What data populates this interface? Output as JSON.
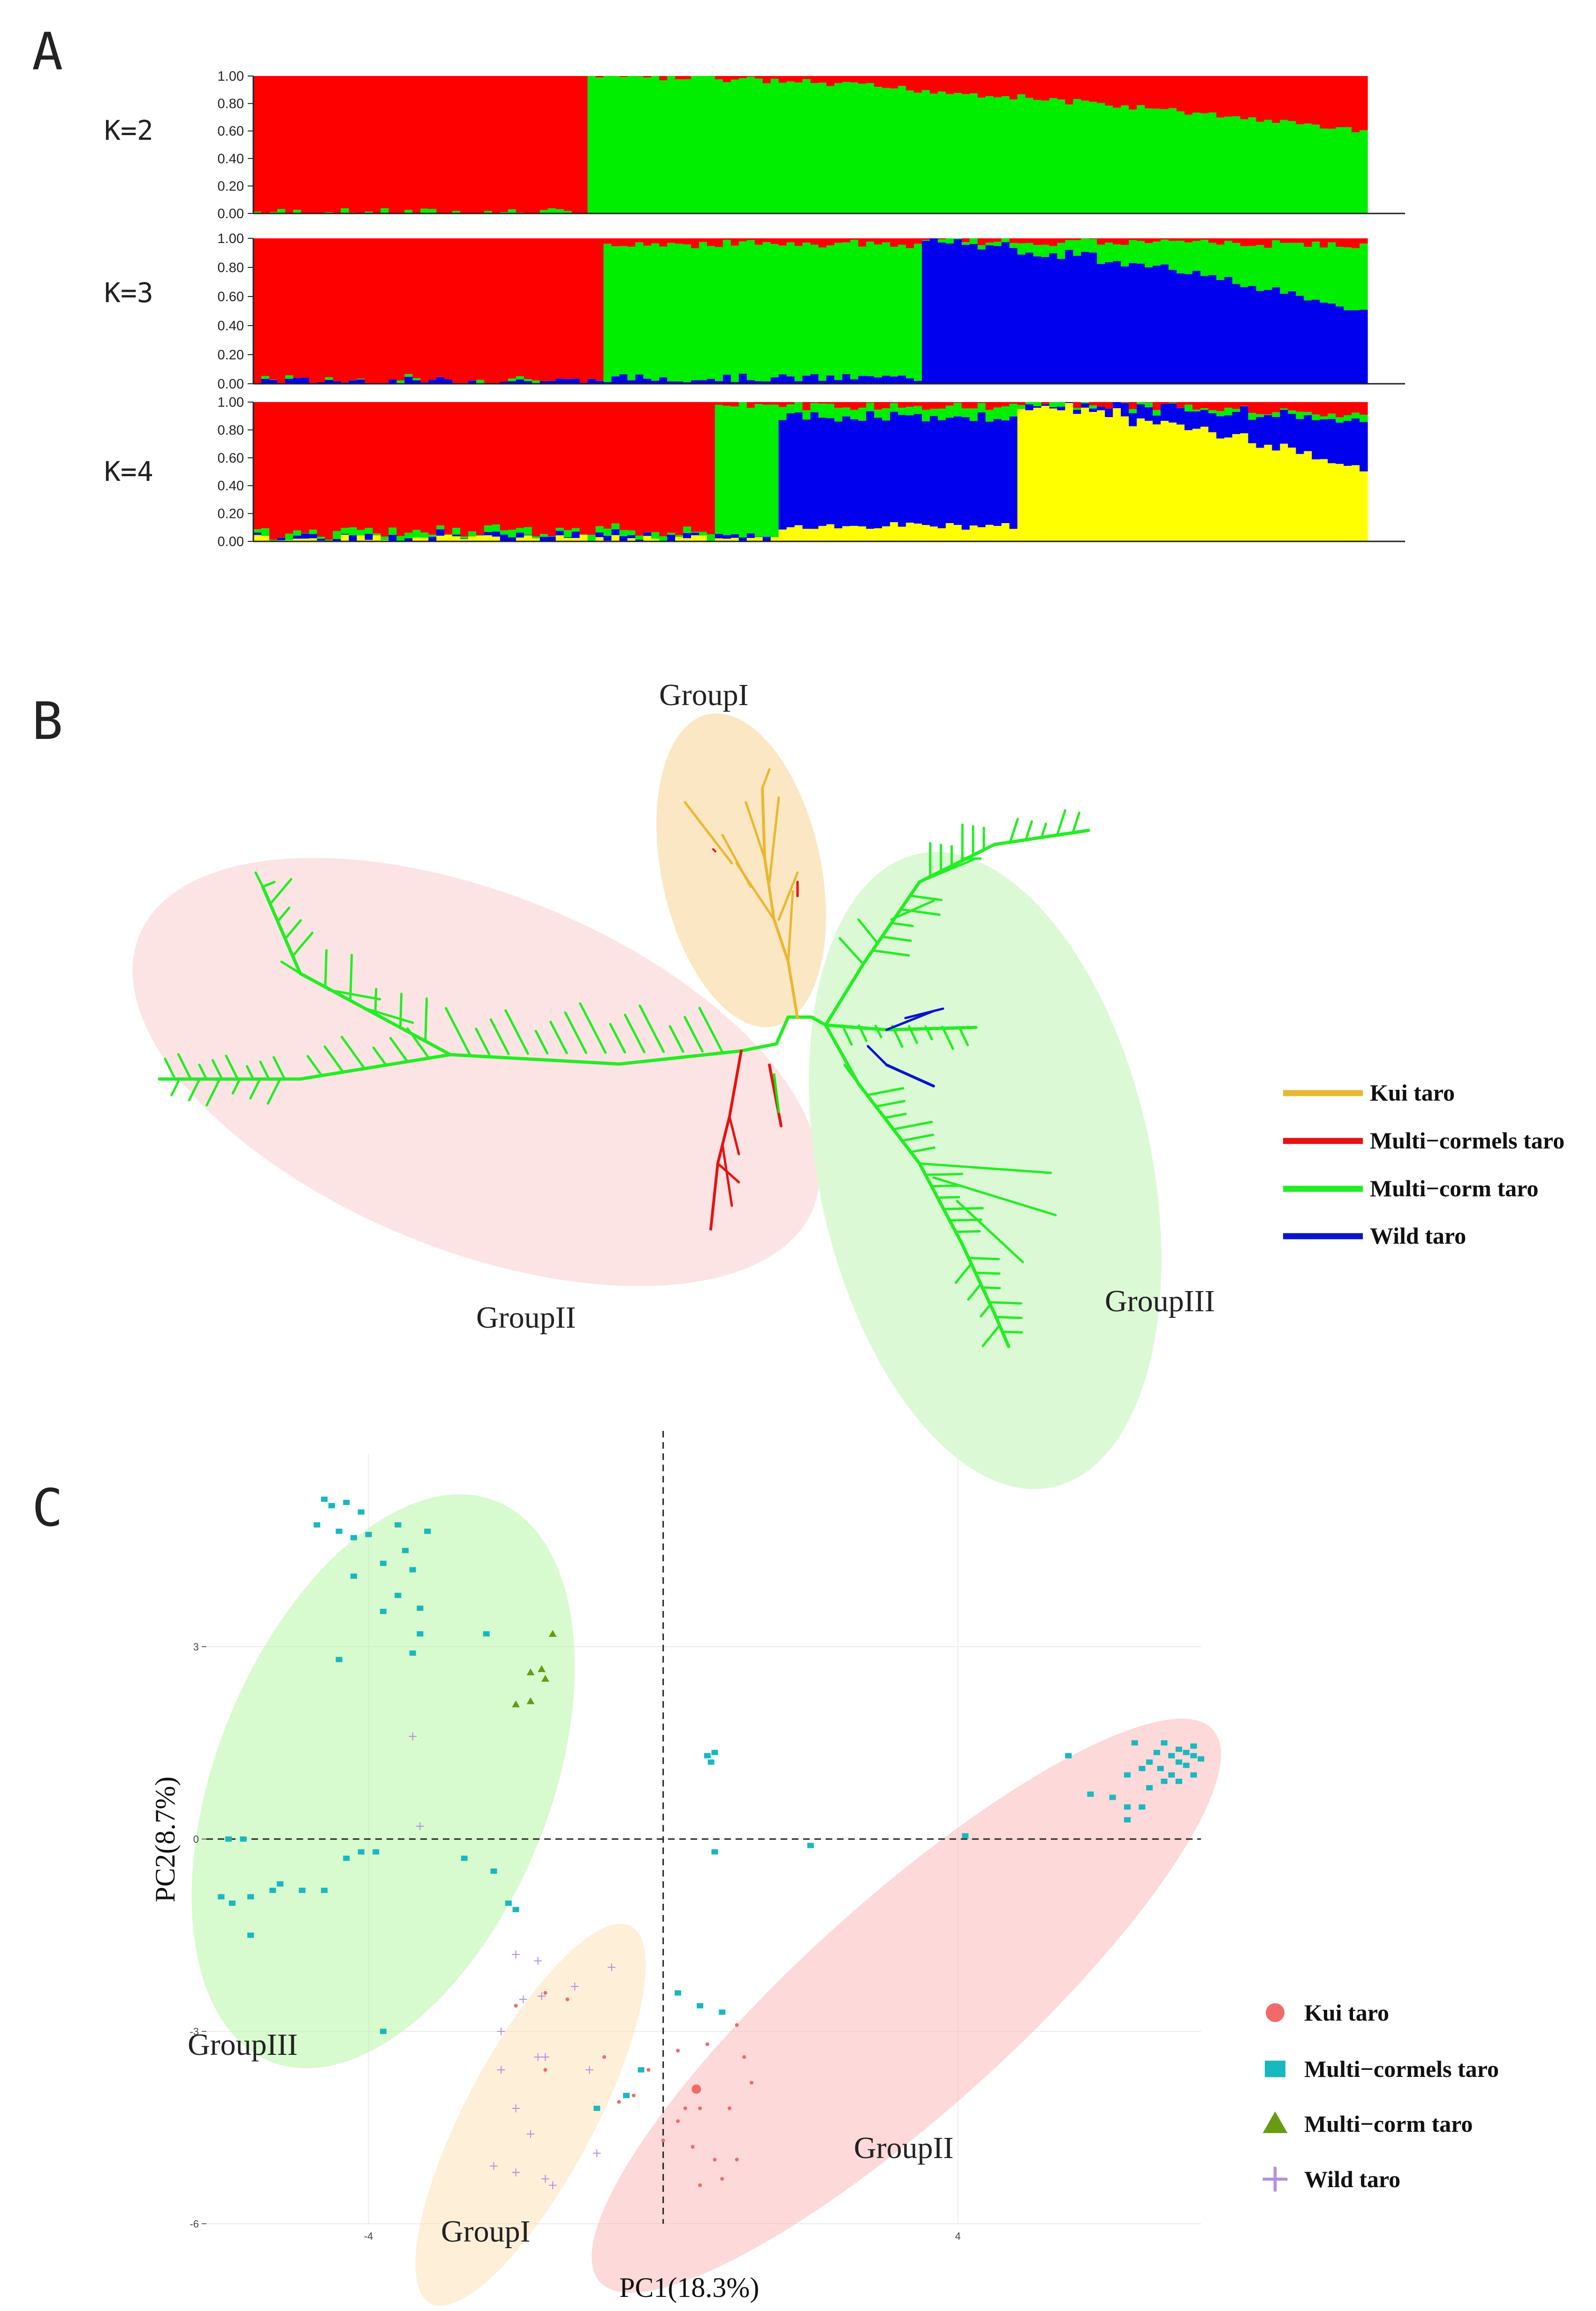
{
  "panels": {
    "a": "A",
    "b": "B",
    "c": "C"
  },
  "colors": {
    "red": "#ff0000",
    "green": "#00ee00",
    "blue": "#0000ee",
    "yellow": "#ffff00",
    "kui": "#e8b830",
    "multi_cormels_tree": "#e81010",
    "multi_corm_tree": "#22ee22",
    "wild_tree": "#0a14cc",
    "pca_kui": "#f06a6a",
    "pca_cormels": "#18b8c0",
    "pca_corm": "#6a9a10",
    "pca_wild": "#b590e0"
  },
  "chart_data": [
    {
      "type": "bar",
      "subtype": "stacked-structure",
      "title": "",
      "n_samples": 140,
      "yticks": [
        "0.00",
        "0.20",
        "0.40",
        "0.60",
        "0.80",
        "1.00"
      ],
      "ylim": [
        0,
        1
      ],
      "plots": [
        {
          "label": "K=2",
          "k": 2,
          "segments": [
            {
              "from": 0,
              "to": 42,
              "props": [
                0.99,
                0.01
              ]
            },
            {
              "from": 42,
              "to": 140,
              "props": [
                0.0,
                1.0
              ],
              "gradient_to": [
                0.4,
                0.6
              ]
            }
          ]
        },
        {
          "label": "K=3",
          "k": 3,
          "segments": [
            {
              "from": 0,
              "to": 44,
              "props": [
                0.98,
                0.0,
                0.02
              ]
            },
            {
              "from": 44,
              "to": 84,
              "props": [
                0.04,
                0.92,
                0.04
              ]
            },
            {
              "from": 84,
              "to": 140,
              "props": [
                0.02,
                0.02,
                0.96
              ],
              "gradient_to": [
                0.05,
                0.45,
                0.5
              ]
            }
          ]
        },
        {
          "label": "K=4",
          "k": 4,
          "segments": [
            {
              "from": 0,
              "to": 58,
              "props": [
                0.93,
                0.03,
                0.02,
                0.02
              ]
            },
            {
              "from": 58,
              "to": 66,
              "props": [
                0.02,
                0.96,
                0.01,
                0.01
              ]
            },
            {
              "from": 66,
              "to": 96,
              "props": [
                0.03,
                0.08,
                0.78,
                0.11
              ]
            },
            {
              "from": 96,
              "to": 140,
              "props": [
                0.01,
                0.01,
                0.02,
                0.96
              ],
              "gradient_to": [
                0.1,
                0.05,
                0.35,
                0.5
              ]
            }
          ]
        }
      ]
    },
    {
      "type": "tree",
      "title": "",
      "groups": [
        "GroupI",
        "GroupII",
        "GroupIII"
      ],
      "legend": [
        {
          "label": "Kui taro",
          "color": "#e8b830"
        },
        {
          "label": "Multi−cormels taro",
          "color": "#e81010"
        },
        {
          "label": "Multi−corm taro",
          "color": "#22ee22"
        },
        {
          "label": "Wild taro",
          "color": "#0a14cc"
        }
      ]
    },
    {
      "type": "scatter",
      "title": "",
      "xlabel": "PC1(18.3%)",
      "ylabel": "PC2(8.7%)",
      "xlim": [
        -6.2,
        7.3
      ],
      "ylim": [
        -6.0,
        6.0
      ],
      "xticks": [
        "-4",
        "4"
      ],
      "xtick_values": [
        -4,
        4
      ],
      "yticks": [
        "3",
        "0",
        "-3",
        "-6"
      ],
      "ytick_values": [
        3,
        0,
        -3,
        -6
      ],
      "groups": [
        {
          "label": "GroupIII",
          "center": [
            -3.8,
            0.9
          ],
          "rx": 4.1,
          "ry": 2.6,
          "angle": 68,
          "color": "#b8f5a8"
        },
        {
          "label": "GroupI",
          "center": [
            -1.8,
            -4.3
          ],
          "rx": 2.9,
          "ry": 1.0,
          "angle": 62,
          "color": "#fde3b8"
        },
        {
          "label": "GroupII",
          "center": [
            3.3,
            -2.6
          ],
          "rx": 5.6,
          "ry": 1.65,
          "angle": 42,
          "color": "#fbb9b9"
        }
      ],
      "legend": [
        {
          "label": "Kui taro",
          "marker": "circle",
          "color": "#f06a6a"
        },
        {
          "label": "Multi−cormels taro",
          "marker": "square",
          "color": "#18b8c0"
        },
        {
          "label": "Multi−corm taro",
          "marker": "triangle",
          "color": "#6a9a10"
        },
        {
          "label": "Wild taro",
          "marker": "cross",
          "color": "#b590e0"
        }
      ],
      "series": [
        {
          "name": "Multi-cormels taro",
          "marker": "square",
          "points": [
            [
              -4.6,
              5.3
            ],
            [
              -4.5,
              5.2
            ],
            [
              -4.3,
              5.25
            ],
            [
              -4.1,
              5.1
            ],
            [
              -4.7,
              4.9
            ],
            [
              -4.4,
              4.8
            ],
            [
              -4.2,
              4.7
            ],
            [
              -4.0,
              4.75
            ],
            [
              -3.6,
              4.9
            ],
            [
              -3.2,
              4.8
            ],
            [
              -3.5,
              4.5
            ],
            [
              -4.2,
              4.1
            ],
            [
              -3.8,
              4.3
            ],
            [
              -3.4,
              4.2
            ],
            [
              -3.6,
              3.8
            ],
            [
              -3.3,
              3.6
            ],
            [
              -3.8,
              3.55
            ],
            [
              -4.4,
              2.8
            ],
            [
              -3.4,
              2.9
            ],
            [
              -2.4,
              3.2
            ],
            [
              -3.3,
              3.2
            ],
            [
              -5.9,
              0.0
            ],
            [
              -5.7,
              0.0
            ],
            [
              -6.0,
              -0.9
            ],
            [
              -5.85,
              -1.0
            ],
            [
              -5.6,
              -0.9
            ],
            [
              -5.3,
              -0.8
            ],
            [
              -5.2,
              -0.7
            ],
            [
              -4.9,
              -0.8
            ],
            [
              -4.6,
              -0.8
            ],
            [
              -4.3,
              -0.3
            ],
            [
              -4.1,
              -0.2
            ],
            [
              -3.9,
              -0.2
            ],
            [
              -2.7,
              -0.3
            ],
            [
              -2.3,
              -0.5
            ],
            [
              -2.1,
              -1.0
            ],
            [
              -2.0,
              -1.1
            ],
            [
              -5.6,
              -1.5
            ],
            [
              -3.8,
              -3.0
            ],
            [
              0.6,
              1.3
            ],
            [
              0.7,
              1.35
            ],
            [
              0.65,
              1.2
            ],
            [
              0.7,
              -0.2
            ],
            [
              0.2,
              -2.4
            ],
            [
              0.5,
              -2.6
            ],
            [
              0.8,
              -2.7
            ],
            [
              -0.9,
              -4.2
            ],
            [
              -0.5,
              -4.0
            ],
            [
              -0.3,
              -3.6
            ],
            [
              4.1,
              0.05
            ],
            [
              5.5,
              1.3
            ],
            [
              5.8,
              0.7
            ],
            [
              6.1,
              0.65
            ],
            [
              6.3,
              1.0
            ],
            [
              6.3,
              0.5
            ],
            [
              6.5,
              0.5
            ],
            [
              6.5,
              1.1
            ],
            [
              6.6,
              1.2
            ],
            [
              6.7,
              1.35
            ],
            [
              6.75,
              1.1
            ],
            [
              6.8,
              0.9
            ],
            [
              6.9,
              1.3
            ],
            [
              7.0,
              1.2
            ],
            [
              7.0,
              1.4
            ],
            [
              7.1,
              1.15
            ],
            [
              7.1,
              1.35
            ],
            [
              7.2,
              1.3
            ],
            [
              7.2,
              1.0
            ],
            [
              6.8,
              1.5
            ],
            [
              6.9,
              1.0
            ],
            [
              7.0,
              0.9
            ],
            [
              7.2,
              1.45
            ],
            [
              7.3,
              1.25
            ],
            [
              6.6,
              0.8
            ],
            [
              6.4,
              1.5
            ],
            [
              6.3,
              0.3
            ],
            [
              2.0,
              -0.1
            ]
          ]
        },
        {
          "name": "Multi-corm taro",
          "marker": "triangle",
          "points": [
            [
              -1.5,
              3.2
            ],
            [
              -1.8,
              2.6
            ],
            [
              -1.65,
              2.65
            ],
            [
              -1.6,
              2.5
            ],
            [
              -2.0,
              2.1
            ],
            [
              -1.8,
              2.15
            ]
          ]
        },
        {
          "name": "Wild taro",
          "marker": "cross",
          "points": [
            [
              -3.4,
              1.6
            ],
            [
              -3.3,
              0.2
            ],
            [
              -2.0,
              -1.8
            ],
            [
              -1.7,
              -1.9
            ],
            [
              -1.2,
              -2.3
            ],
            [
              -0.7,
              -2.0
            ],
            [
              -1.9,
              -2.5
            ],
            [
              -1.65,
              -2.45
            ],
            [
              -2.2,
              -3.0
            ],
            [
              -1.7,
              -3.4
            ],
            [
              -1.6,
              -3.4
            ],
            [
              -2.2,
              -3.6
            ],
            [
              -1.0,
              -3.6
            ],
            [
              -2.0,
              -4.2
            ],
            [
              -1.8,
              -4.6
            ],
            [
              -2.0,
              -5.2
            ],
            [
              -1.6,
              -5.3
            ],
            [
              -1.5,
              -5.4
            ],
            [
              -0.9,
              -4.9
            ],
            [
              -2.3,
              -5.1
            ]
          ]
        },
        {
          "name": "Kui taro",
          "marker": "circle",
          "points": [
            [
              -2.0,
              -2.6
            ],
            [
              -1.6,
              -2.4
            ],
            [
              -1.3,
              -2.5
            ],
            [
              -1.6,
              -3.6
            ],
            [
              -0.8,
              -3.4
            ],
            [
              -0.6,
              -4.1
            ],
            [
              -0.4,
              -4.0
            ],
            [
              -0.2,
              -3.6
            ],
            [
              0.2,
              -3.3
            ],
            [
              0.6,
              -3.2
            ],
            [
              0.3,
              -4.2
            ],
            [
              0.5,
              -4.2
            ],
            [
              0.9,
              -4.2
            ],
            [
              1.1,
              -3.4
            ],
            [
              1.2,
              -3.8
            ],
            [
              0.4,
              -4.8
            ],
            [
              0.7,
              -5.0
            ],
            [
              1.0,
              -5.0
            ],
            [
              0.5,
              -5.4
            ],
            [
              0.8,
              -5.3
            ],
            [
              0.0,
              -4.7
            ],
            [
              1.0,
              -2.9
            ],
            [
              0.2,
              -4.4
            ]
          ],
          "highlight": [
            0.45,
            -3.9
          ]
        }
      ]
    }
  ]
}
